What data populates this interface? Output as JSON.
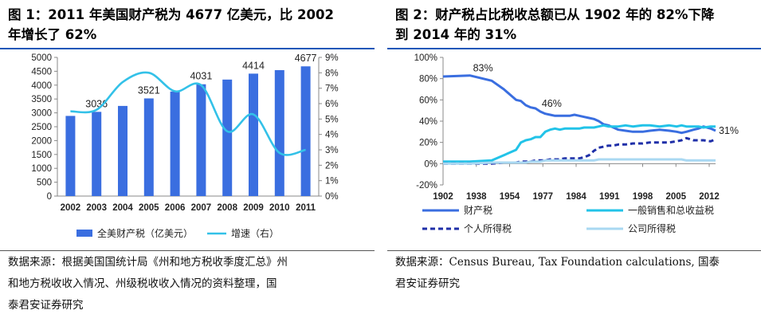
{
  "figure1": {
    "title_lines": [
      "图 1：2011 年美国财产税为 4677 亿美元，比 2002",
      "年增长了 62%"
    ],
    "source_lines": [
      "数据来源：根据美国国统计局《州和地方税收季度汇总》州",
      "和地方税收收入情况、州级税收收入情况的资料整理，国",
      "泰君安证券研究"
    ]
  },
  "figure2": {
    "title_lines": [
      "图 2：财产税占比税收总额已从 1902 年的 82%下降",
      "到 2014 年的 31%"
    ],
    "source_lines": [
      "数据来源：Census Bureau, Tax Foundation calculations, 国泰",
      "君安证券研究"
    ]
  },
  "colors": {
    "bar": "#3a6ee0",
    "growth": "#33c1e8",
    "property": "#3a6ee0",
    "sales": "#22c3e8",
    "personal": "#1f2fa8",
    "corporate": "#a9d8f2",
    "rule": "#1e57b8"
  },
  "chart_data": [
    {
      "type": "bar",
      "categories": [
        "2002",
        "2003",
        "2004",
        "2005",
        "2006",
        "2007",
        "2008",
        "2009",
        "2010",
        "2011"
      ],
      "series": [
        {
          "name": "全美财产税（亿美元）",
          "type": "bar",
          "axis": "left",
          "values": [
            2890,
            3036,
            3250,
            3521,
            3770,
            4031,
            4200,
            4414,
            4540,
            4677
          ]
        },
        {
          "name": "增速（右）",
          "type": "line",
          "axis": "right",
          "values": [
            5.5,
            5.6,
            7.4,
            8.0,
            6.8,
            7.2,
            4.2,
            5.3,
            2.8,
            3.0
          ]
        }
      ],
      "data_labels": {
        "categories": [
          "2003",
          "2005",
          "2007",
          "2009",
          "2011"
        ],
        "values": [
          "3036",
          "3521",
          "4031",
          "4414",
          "4677"
        ]
      },
      "ylim_left": [
        0,
        5000
      ],
      "yticks_left": [
        "0",
        "500",
        "1000",
        "1500",
        "2000",
        "2500",
        "3000",
        "3500",
        "4000",
        "4500",
        "5000"
      ],
      "ylim_right": [
        0,
        9
      ],
      "yticks_right": [
        "0%",
        "1%",
        "2%",
        "3%",
        "4%",
        "5%",
        "6%",
        "7%",
        "8%",
        "9%"
      ],
      "legend_position": "bottom",
      "grid": false
    },
    {
      "type": "line",
      "x": [
        1902,
        1913,
        1922,
        1927,
        1932,
        1934,
        1936,
        1938,
        1940,
        1942,
        1944,
        1946,
        1948,
        1950,
        1952,
        1954,
        1956,
        1958,
        1960,
        1962,
        1964,
        1966,
        1968,
        1970,
        1972,
        1974,
        1977,
        1980,
        1984,
        1987,
        1991,
        1995,
        1998,
        2000,
        2002,
        2005,
        2007,
        2009,
        2012,
        2014
      ],
      "xtick_labels": [
        "1902",
        "1938",
        "1954",
        "1977",
        "1984",
        "1991",
        "1998",
        "2005",
        "2012"
      ],
      "series": [
        {
          "name": "财产税",
          "values": [
            82,
            83,
            78,
            70,
            60,
            59,
            55,
            53,
            52,
            49,
            47,
            46,
            45,
            45,
            45,
            45,
            46,
            45,
            44,
            43,
            42,
            40,
            37,
            36,
            34,
            32,
            31,
            30,
            30,
            31,
            32,
            31,
            30,
            29,
            30,
            32,
            33,
            35,
            33,
            31
          ]
        },
        {
          "name": "一般销售和总收益税",
          "values": [
            2,
            2,
            3,
            8,
            13,
            20,
            22,
            23,
            25,
            25,
            30,
            32,
            33,
            32,
            33,
            33,
            33,
            33,
            34,
            34,
            34,
            35,
            36,
            35,
            35,
            35,
            36,
            35,
            36,
            36,
            35,
            36,
            35,
            36,
            35,
            35,
            35,
            34,
            35,
            35
          ]
        },
        {
          "name": "个人所得税",
          "values": [
            0,
            0,
            0,
            1,
            1,
            2,
            2,
            2,
            3,
            3,
            3,
            4,
            4,
            4,
            5,
            5,
            5,
            5,
            6,
            8,
            12,
            15,
            16,
            17,
            17,
            18,
            18,
            19,
            19,
            20,
            20,
            20,
            21,
            22,
            24,
            22,
            22,
            22,
            21,
            23
          ]
        },
        {
          "name": "公司所得税",
          "values": [
            0,
            0,
            1,
            1,
            1,
            1,
            1,
            2,
            2,
            2,
            3,
            3,
            3,
            3,
            3,
            3,
            3,
            3,
            3,
            3,
            3,
            4,
            4,
            4,
            4,
            4,
            4,
            4,
            4,
            4,
            4,
            4,
            4,
            4,
            3,
            3,
            3,
            3,
            3,
            3
          ]
        }
      ],
      "annotations": [
        "83%",
        "46%",
        "31%"
      ],
      "ylim": [
        -20,
        100
      ],
      "yticks": [
        "-20%",
        "0%",
        "20%",
        "40%",
        "60%",
        "80%",
        "100%"
      ],
      "legend_position": "bottom",
      "grid": false
    }
  ]
}
